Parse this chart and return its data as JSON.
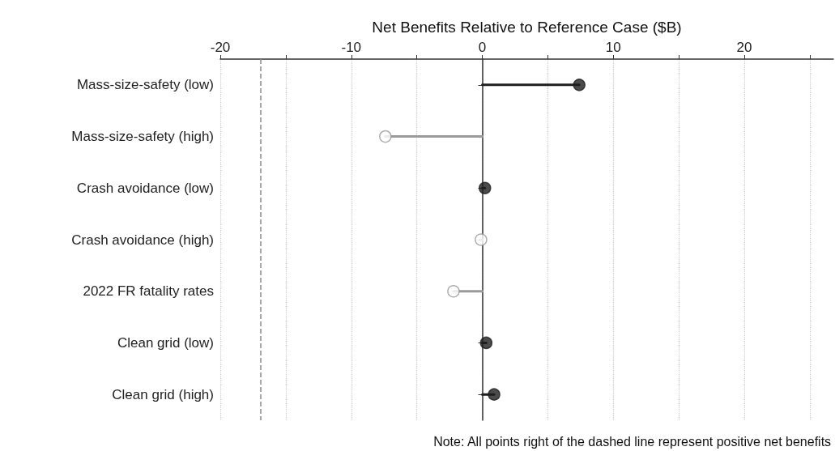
{
  "chart_data": {
    "type": "lollipop",
    "orientation": "horizontal",
    "xlabel": "Net Benefits Relative to Reference Case ($B)",
    "categories": [
      "Mass-size-safety (low)",
      "Mass-size-safety (high)",
      "Crash avoidance (low)",
      "Crash avoidance (high)",
      "2022 FR fatality rates",
      "Clean grid (low)",
      "Clean grid (high)"
    ],
    "values": [
      7.4,
      -7.4,
      0.2,
      -0.1,
      -2.2,
      0.3,
      0.9
    ],
    "colors": [
      "#1e1e1e",
      "#9a9a9a",
      "#1e1e1e",
      "#9a9a9a",
      "#9a9a9a",
      "#1e1e1e",
      "#1e1e1e"
    ],
    "xlim": [
      -20,
      26.8
    ],
    "xticks": [
      -20,
      {
        "value": -15,
        "label": null
      },
      -10,
      {
        "value": -5,
        "label": null
      },
      0,
      {
        "value": 5,
        "label": null
      },
      10,
      {
        "value": 15,
        "label": null
      },
      20,
      {
        "value": 25,
        "label": null
      }
    ],
    "grid": "x",
    "marker": "circle",
    "ref_lines": [
      {
        "axis": "x",
        "value": -16.9,
        "label": null,
        "color": "#8a8a8a",
        "line_style": "dashed"
      }
    ],
    "annotations": [
      "Note: All points right of the dashed line represent positive net benefits"
    ]
  }
}
